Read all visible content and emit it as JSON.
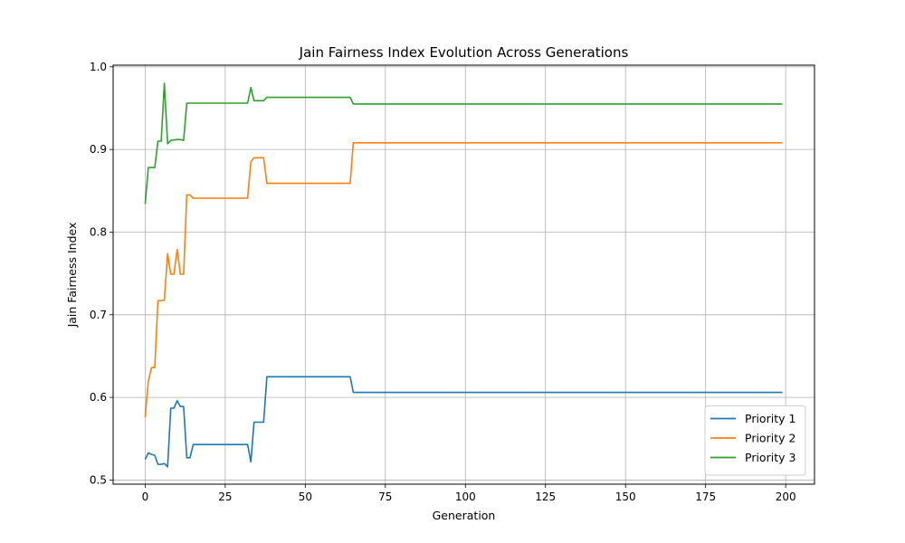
{
  "chart_data": {
    "type": "line",
    "title": "Jain Fairness Index Evolution Across Generations",
    "xlabel": "Generation",
    "ylabel": "Jain Fairness Index",
    "xlim": [
      -10,
      209
    ],
    "ylim": [
      0.495,
      1.002
    ],
    "xticks": [
      0,
      25,
      50,
      75,
      100,
      125,
      150,
      175,
      200
    ],
    "yticks": [
      0.5,
      0.6,
      0.7,
      0.8,
      0.9,
      1.0
    ],
    "xtick_labels": [
      "0",
      "25",
      "50",
      "75",
      "100",
      "125",
      "150",
      "175",
      "200"
    ],
    "ytick_labels": [
      "0.5",
      "0.6",
      "0.7",
      "0.8",
      "0.9",
      "1.0"
    ],
    "grid": true,
    "legend_position": "lower-right",
    "series": [
      {
        "name": "Priority 1",
        "color": "#1f77b4",
        "points": [
          [
            0,
            0.525
          ],
          [
            1,
            0.533
          ],
          [
            2,
            0.531
          ],
          [
            3,
            0.53
          ],
          [
            4,
            0.519
          ],
          [
            5,
            0.519
          ],
          [
            6,
            0.52
          ],
          [
            7,
            0.516
          ],
          [
            8,
            0.587
          ],
          [
            9,
            0.587
          ],
          [
            10,
            0.596
          ],
          [
            11,
            0.589
          ],
          [
            12,
            0.589
          ],
          [
            13,
            0.527
          ],
          [
            14,
            0.527
          ],
          [
            15,
            0.543
          ],
          [
            32,
            0.543
          ],
          [
            33,
            0.522
          ],
          [
            34,
            0.57
          ],
          [
            37,
            0.57
          ],
          [
            38,
            0.625
          ],
          [
            64,
            0.625
          ],
          [
            65,
            0.606
          ],
          [
            199,
            0.606
          ]
        ]
      },
      {
        "name": "Priority 2",
        "color": "#ff7f0e",
        "points": [
          [
            0,
            0.576
          ],
          [
            1,
            0.62
          ],
          [
            2,
            0.636
          ],
          [
            3,
            0.636
          ],
          [
            4,
            0.717
          ],
          [
            5,
            0.717
          ],
          [
            6,
            0.718
          ],
          [
            7,
            0.774
          ],
          [
            8,
            0.749
          ],
          [
            9,
            0.749
          ],
          [
            10,
            0.779
          ],
          [
            11,
            0.749
          ],
          [
            12,
            0.749
          ],
          [
            13,
            0.845
          ],
          [
            14,
            0.845
          ],
          [
            15,
            0.841
          ],
          [
            32,
            0.841
          ],
          [
            33,
            0.885
          ],
          [
            34,
            0.89
          ],
          [
            37,
            0.89
          ],
          [
            38,
            0.859
          ],
          [
            64,
            0.859
          ],
          [
            65,
            0.908
          ],
          [
            199,
            0.908
          ]
        ]
      },
      {
        "name": "Priority 3",
        "color": "#2ca02c",
        "points": [
          [
            0,
            0.834
          ],
          [
            1,
            0.878
          ],
          [
            2,
            0.878
          ],
          [
            3,
            0.878
          ],
          [
            4,
            0.91
          ],
          [
            5,
            0.91
          ],
          [
            6,
            0.98
          ],
          [
            7,
            0.907
          ],
          [
            8,
            0.911
          ],
          [
            10,
            0.912
          ],
          [
            11,
            0.912
          ],
          [
            12,
            0.911
          ],
          [
            13,
            0.956
          ],
          [
            32,
            0.956
          ],
          [
            33,
            0.975
          ],
          [
            34,
            0.959
          ],
          [
            37,
            0.959
          ],
          [
            38,
            0.963
          ],
          [
            64,
            0.963
          ],
          [
            65,
            0.955
          ],
          [
            199,
            0.955
          ]
        ]
      }
    ]
  }
}
